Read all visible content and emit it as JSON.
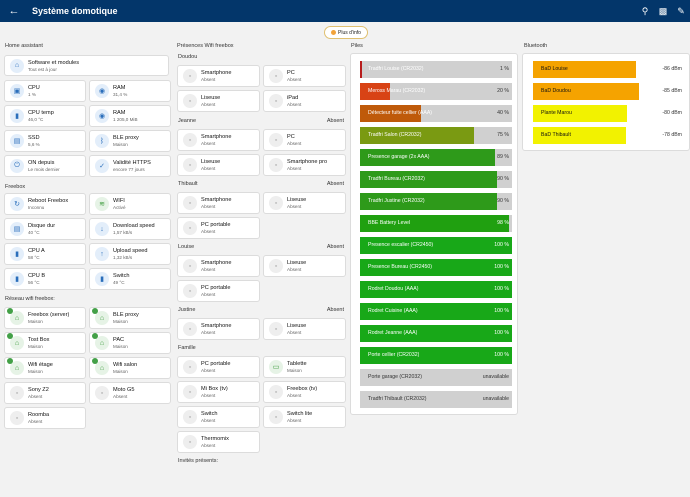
{
  "topbar": {
    "title": "Système domotique"
  },
  "info_button": "Plus d'info",
  "home_assistant": {
    "title": "Home assistant",
    "software": {
      "name": "Software et modules",
      "state": "Tout est à jour"
    },
    "tiles": [
      {
        "name": "CPU",
        "state": "1 %"
      },
      {
        "name": "RAM",
        "state": "31,4 %"
      },
      {
        "name": "CPU temp",
        "state": "46,0 °C"
      },
      {
        "name": "RAM",
        "state": "1 205,0 MiB"
      },
      {
        "name": "SSD",
        "state": "5,6 %"
      },
      {
        "name": "BLE proxy",
        "state": "Maison"
      },
      {
        "name": "ON depuis",
        "state": "Le mois dernier"
      },
      {
        "name": "Validité HTTPS",
        "state": "encore 77 jours"
      }
    ]
  },
  "freebox": {
    "title": "Freebox",
    "tiles": [
      {
        "name": "Reboot Freebox",
        "state": "Inconnu"
      },
      {
        "name": "WIFI",
        "state": "Activé"
      },
      {
        "name": "Disque dur",
        "state": "40 °C"
      },
      {
        "name": "Download speed",
        "state": "1,57 kB/s"
      },
      {
        "name": "CPU A",
        "state": "58 °C"
      },
      {
        "name": "Upload speed",
        "state": "1,32 kB/s"
      },
      {
        "name": "CPU B",
        "state": "56 °C"
      },
      {
        "name": "Switch",
        "state": "49 °C"
      }
    ]
  },
  "wifi_network": {
    "title": "Réseau wifi freebox:",
    "tiles": [
      {
        "name": "Freebox (server)",
        "state": "Maison"
      },
      {
        "name": "BLE proxy",
        "state": "Maison"
      },
      {
        "name": "Tost Box",
        "state": "Maison"
      },
      {
        "name": "PAC",
        "state": "Maison"
      },
      {
        "name": "Wifi étage",
        "state": "Maison"
      },
      {
        "name": "Wifi salon",
        "state": "Maison"
      },
      {
        "name": "Sony Z2",
        "state": "Absent"
      },
      {
        "name": "Moto G5",
        "state": "Absent"
      },
      {
        "name": "Roomba",
        "state": "Absent"
      }
    ]
  },
  "presences": {
    "title": "Présences Wifi freebox",
    "groups": [
      {
        "name": "Doudou",
        "status": "",
        "devices": [
          {
            "name": "Smartphone",
            "state": "Absent"
          },
          {
            "name": "PC",
            "state": "Absent"
          },
          {
            "name": "Liseuse",
            "state": "Absent"
          },
          {
            "name": "iPad",
            "state": "Absent"
          }
        ]
      },
      {
        "name": "Jeanne",
        "status": "Absent",
        "devices": [
          {
            "name": "Smartphone",
            "state": "Absent"
          },
          {
            "name": "PC",
            "state": "Absent"
          },
          {
            "name": "Liseuse",
            "state": "Absent"
          },
          {
            "name": "Smartphone pro",
            "state": "Absent"
          }
        ]
      },
      {
        "name": "Thibault",
        "status": "Absent",
        "devices": [
          {
            "name": "Smartphone",
            "state": "Absent"
          },
          {
            "name": "Liseuse",
            "state": "Absent"
          },
          {
            "name": "PC portable",
            "state": "Absent"
          }
        ]
      },
      {
        "name": "Louise",
        "status": "Absent",
        "devices": [
          {
            "name": "Smartphone",
            "state": "Absent"
          },
          {
            "name": "Liseuse",
            "state": "Absent"
          },
          {
            "name": "PC portable",
            "state": "Absent"
          }
        ]
      },
      {
        "name": "Justine",
        "status": "Absent",
        "devices": [
          {
            "name": "Smartphone",
            "state": "Absent"
          },
          {
            "name": "Liseuse",
            "state": "Absent"
          }
        ]
      },
      {
        "name": "Famille",
        "status": "",
        "devices": [
          {
            "name": "PC portable",
            "state": "Absent"
          },
          {
            "name": "Tablette",
            "state": "Maison"
          },
          {
            "name": "Mi Box (tv)",
            "state": "Absent"
          },
          {
            "name": "Freebox (tv)",
            "state": "Absent"
          },
          {
            "name": "Switch",
            "state": "Absent"
          },
          {
            "name": "Switch lite",
            "state": "Absent"
          },
          {
            "name": "Thermomix",
            "state": "Absent"
          }
        ]
      }
    ],
    "guests_label": "Invités présents:"
  },
  "piles": {
    "title": "Piles",
    "items": [
      {
        "name": "Tradfri Louise (CR2032)",
        "value": "1 %",
        "level": 1,
        "color": "#b71c1c"
      },
      {
        "name": "Meross Marau (CR2032)",
        "value": "20 %",
        "level": 20,
        "color": "#d84315"
      },
      {
        "name": "Détecteur fuite cellier (AAA)",
        "value": "40 %",
        "level": 40,
        "color": "#bf5a0a"
      },
      {
        "name": "Tradfri Salon (CR2032)",
        "value": "75 %",
        "level": 75,
        "color": "#7a9a12"
      },
      {
        "name": "Presence garage (2x AAA)",
        "value": "89 %",
        "level": 89,
        "color": "#2e9a1a"
      },
      {
        "name": "Tradfri Bureau (CR2032)",
        "value": "90 %",
        "level": 90,
        "color": "#2e9a1a"
      },
      {
        "name": "Tradfri Justine (CR2032)",
        "value": "90 %",
        "level": 90,
        "color": "#2e9a1a"
      },
      {
        "name": "BBE Battery Level",
        "value": "98 %",
        "level": 98,
        "color": "#20a010"
      },
      {
        "name": "Presence escalier (CR2450)",
        "value": "100 %",
        "level": 100,
        "color": "#18a818"
      },
      {
        "name": "Presence Bureau (CR2450)",
        "value": "100 %",
        "level": 100,
        "color": "#18a818"
      },
      {
        "name": "Rodret Doudou (AAA)",
        "value": "100 %",
        "level": 100,
        "color": "#18a818"
      },
      {
        "name": "Rodret Cuisine (AAA)",
        "value": "100 %",
        "level": 100,
        "color": "#18a818"
      },
      {
        "name": "Rodret Jeanne (AAA)",
        "value": "100 %",
        "level": 100,
        "color": "#18a818"
      },
      {
        "name": "Porte cellier (CR2032)",
        "value": "100 %",
        "level": 100,
        "color": "#18a818"
      },
      {
        "name": "Porte garage (CR2032)",
        "value": "unavailable",
        "level": 0,
        "color": "#d0d0d0"
      },
      {
        "name": "Tradfri Thibault (CR2032)",
        "value": "unavailable",
        "level": 0,
        "color": "#d0d0d0"
      }
    ]
  },
  "bluetooth": {
    "title": "Bluetooth",
    "items": [
      {
        "name": "BaD Louise",
        "value": "-86 dBm",
        "level": 68,
        "color": "#f5a300"
      },
      {
        "name": "BaD Doudou",
        "value": "-85 dBm",
        "level": 70,
        "color": "#f5a300"
      },
      {
        "name": "Plante Marou",
        "value": "-80 dBm",
        "level": 62,
        "color": "#f2f200"
      },
      {
        "name": "BaD Thibault",
        "value": "-78 dBm",
        "level": 61,
        "color": "#f2f200"
      }
    ]
  }
}
